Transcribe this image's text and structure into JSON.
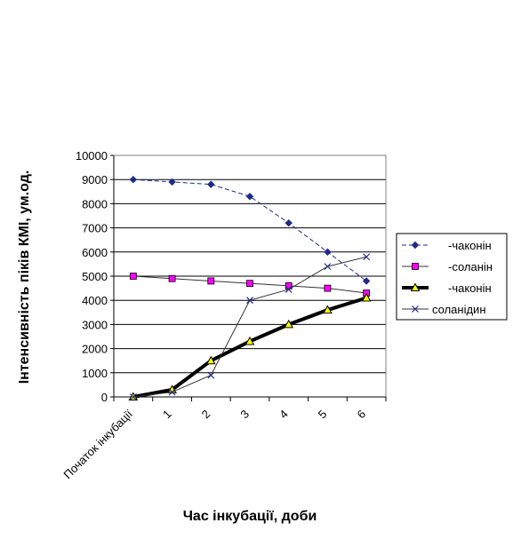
{
  "chart_data": {
    "type": "line",
    "title": "",
    "xlabel": "Час інкубації, доби",
    "ylabel": "Інтенсивність піків КМІ, ум.од.",
    "categories": [
      "Початок інкубації",
      "1",
      "2",
      "3",
      "4",
      "5",
      "6"
    ],
    "ylim": [
      0,
      10000
    ],
    "yticks": [
      0,
      1000,
      2000,
      3000,
      4000,
      5000,
      6000,
      7000,
      8000,
      9000,
      10000
    ],
    "grid": true,
    "legend_position": "right",
    "series": [
      {
        "name": "-чаконін",
        "marker": "diamond",
        "color": "#1f2a8a",
        "line_style": "dashed",
        "values": [
          9000,
          8900,
          8800,
          8300,
          7200,
          6000,
          4800
        ]
      },
      {
        "name": "-соланін",
        "marker": "square",
        "color": "#333333",
        "marker_color": "#ff00ff",
        "line_style": "solid",
        "values": [
          5000,
          4900,
          4800,
          4700,
          4600,
          4500,
          4300
        ]
      },
      {
        "name": "-чаконін",
        "marker": "triangle",
        "color": "#000000",
        "marker_color": "#ffff00",
        "line_style": "thick",
        "values": [
          0,
          300,
          1500,
          2300,
          3000,
          3600,
          4100
        ]
      },
      {
        "name": "соланідин",
        "marker": "x",
        "color": "#333333",
        "marker_color": "#1f2a8a",
        "line_style": "solid",
        "values": [
          0,
          200,
          900,
          4000,
          4450,
          5400,
          5800
        ]
      }
    ]
  }
}
